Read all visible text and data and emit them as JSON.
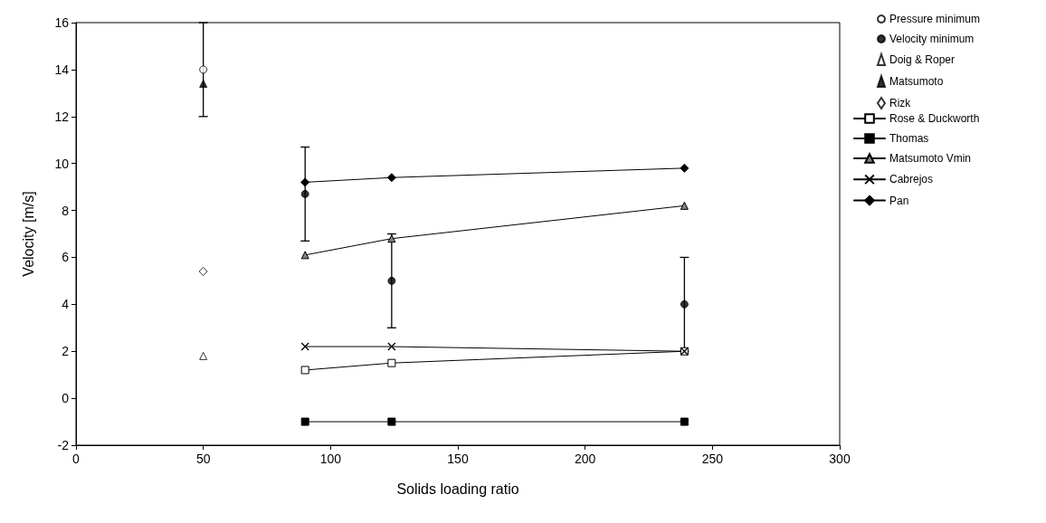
{
  "chart_data": {
    "type": "scatter",
    "xlabel": "Solids loading ratio",
    "ylabel": "Velocity [m/s]",
    "xlim": [
      0,
      300
    ],
    "xticks": [
      0,
      50,
      100,
      150,
      200,
      250,
      300
    ],
    "ylim": [
      -2,
      16
    ],
    "yticks": [
      -2,
      0,
      2,
      4,
      6,
      8,
      10,
      12,
      14,
      16
    ],
    "grid": false,
    "legend": "right",
    "series": [
      {
        "name": "Pressure minimum",
        "marker": "circle",
        "color": "#ffffff",
        "x": [
          50
        ],
        "values": [
          14
        ],
        "errors": [
          2
        ]
      },
      {
        "name": "Velocity minimum",
        "marker": "circle",
        "color": "#000000",
        "x": [
          90,
          124,
          239
        ],
        "values": [
          8.7,
          5.0,
          4.0
        ],
        "errors": [
          2,
          2,
          2
        ]
      },
      {
        "name": "Doig & Roper",
        "marker": "triangle",
        "color": "#ffffff",
        "x": [
          50
        ],
        "values": [
          1.8
        ]
      },
      {
        "name": "Matsumoto",
        "marker": "triangle",
        "color": "#000000",
        "x": [
          50
        ],
        "values": [
          13.4
        ]
      },
      {
        "name": "Rizk",
        "marker": "diamond",
        "color": "#ffffff",
        "x": [
          50
        ],
        "values": [
          5.4
        ]
      },
      {
        "name": "Rose & Duckworth",
        "type": "line",
        "marker": "square",
        "color": "#ffffff",
        "x": [
          90,
          124,
          239
        ],
        "values": [
          1.2,
          1.5,
          2.0
        ]
      },
      {
        "name": "Thomas",
        "type": "line",
        "marker": "square",
        "color": "#000000",
        "x": [
          90,
          124,
          239
        ],
        "values": [
          -1,
          -1,
          -1
        ]
      },
      {
        "name": "Matsumoto Vmin",
        "type": "line",
        "marker": "triangle",
        "color": "#808080",
        "x": [
          90,
          124,
          239
        ],
        "values": [
          6.1,
          6.8,
          8.2
        ]
      },
      {
        "name": "Cabrejos",
        "type": "line",
        "marker": "cross",
        "color": "#000000",
        "x": [
          90,
          124,
          239
        ],
        "values": [
          2.2,
          2.2,
          2.0
        ]
      },
      {
        "name": "Pan",
        "type": "line",
        "marker": "diamond",
        "color": "#000000",
        "x": [
          90,
          124,
          239
        ],
        "values": [
          9.2,
          9.4,
          9.8
        ]
      }
    ]
  }
}
